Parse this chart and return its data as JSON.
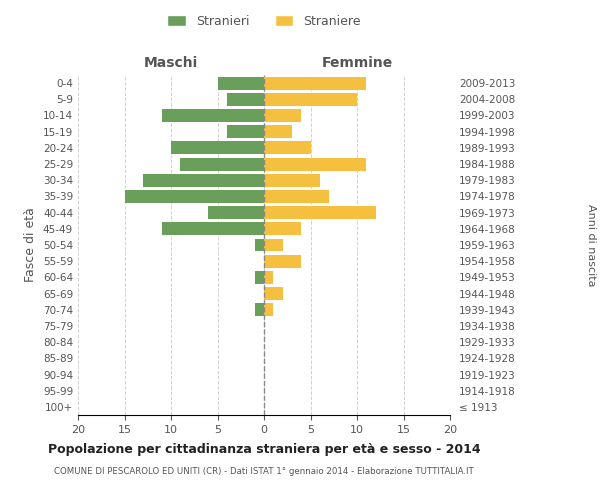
{
  "age_groups": [
    "100+",
    "95-99",
    "90-94",
    "85-89",
    "80-84",
    "75-79",
    "70-74",
    "65-69",
    "60-64",
    "55-59",
    "50-54",
    "45-49",
    "40-44",
    "35-39",
    "30-34",
    "25-29",
    "20-24",
    "15-19",
    "10-14",
    "5-9",
    "0-4"
  ],
  "birth_years": [
    "≤ 1913",
    "1914-1918",
    "1919-1923",
    "1924-1928",
    "1929-1933",
    "1934-1938",
    "1939-1943",
    "1944-1948",
    "1949-1953",
    "1954-1958",
    "1959-1963",
    "1964-1968",
    "1969-1973",
    "1974-1978",
    "1979-1983",
    "1984-1988",
    "1989-1993",
    "1994-1998",
    "1999-2003",
    "2004-2008",
    "2009-2013"
  ],
  "maschi": [
    0,
    0,
    0,
    0,
    0,
    0,
    1,
    0,
    1,
    0,
    1,
    11,
    6,
    15,
    13,
    9,
    10,
    4,
    11,
    4,
    5
  ],
  "femmine": [
    0,
    0,
    0,
    0,
    0,
    0,
    1,
    2,
    1,
    4,
    2,
    4,
    12,
    7,
    6,
    11,
    5,
    3,
    4,
    10,
    11
  ],
  "maschi_color": "#6a9f5b",
  "femmine_color": "#f5c040",
  "background_color": "#ffffff",
  "grid_color": "#cccccc",
  "title": "Popolazione per cittadinanza straniera per età e sesso - 2014",
  "subtitle": "COMUNE DI PESCAROLO ED UNITI (CR) - Dati ISTAT 1° gennaio 2014 - Elaborazione TUTTITALIA.IT",
  "xlabel_left": "Maschi",
  "xlabel_right": "Femmine",
  "ylabel_left": "Fasce di età",
  "ylabel_right": "Anni di nascita",
  "legend_stranieri": "Stranieri",
  "legend_straniere": "Straniere",
  "xlim": 20,
  "bar_height": 0.8
}
